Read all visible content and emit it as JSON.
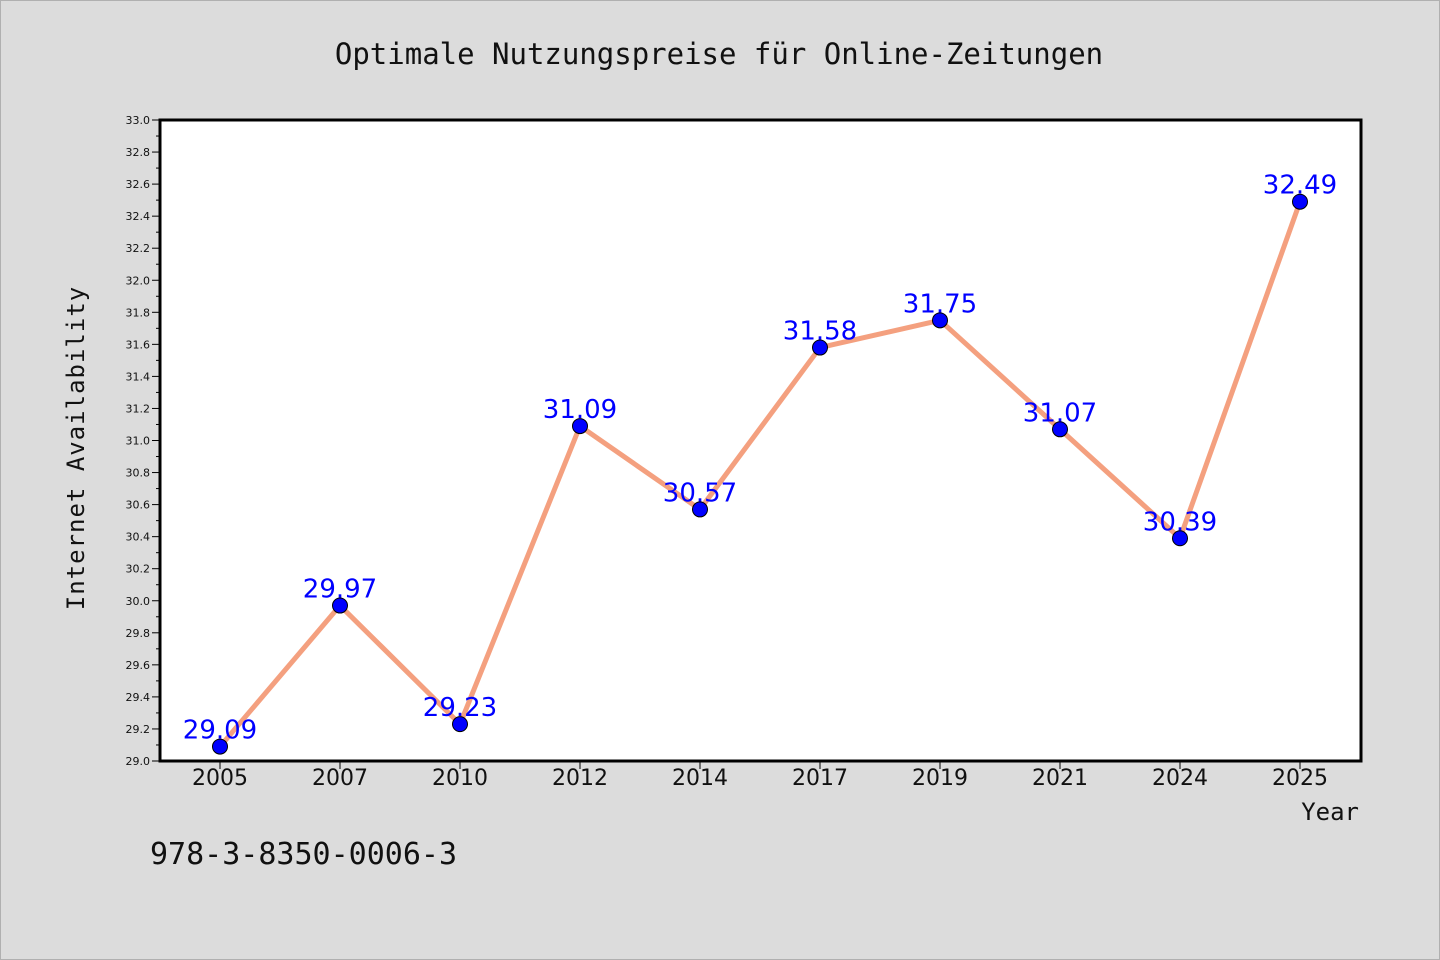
{
  "chart_data": {
    "type": "line",
    "title": "Optimale Nutzungspreise für Online-Zeitungen",
    "xlabel": "Year",
    "ylabel": "Internet Availability",
    "categories": [
      "2005",
      "2007",
      "2010",
      "2012",
      "2014",
      "2017",
      "2019",
      "2021",
      "2024",
      "2025"
    ],
    "values": [
      29.09,
      29.97,
      29.23,
      31.09,
      30.57,
      31.58,
      31.75,
      31.07,
      30.39,
      32.49
    ],
    "data_labels": [
      "29.09",
      "29.97",
      "29.23",
      "31.09",
      "30.57",
      "31.58",
      "31.75",
      "31.07",
      "30.39",
      "32.49"
    ],
    "ylim": [
      29.0,
      33.0
    ],
    "y_ticks": [
      "29.0",
      "29.2",
      "29.4",
      "29.6",
      "29.8",
      "30.0",
      "30.2",
      "30.4",
      "30.6",
      "30.8",
      "31.0",
      "31.2",
      "31.4",
      "31.6",
      "31.8",
      "32.0",
      "32.2",
      "32.4",
      "32.6",
      "32.8",
      "33.0"
    ],
    "grid": false,
    "colors": {
      "line": "#f4a07f",
      "marker": "#0000ff",
      "label": "#0000ff",
      "plot_bg": "#ffffff",
      "figure_bg": "#dcdcdc"
    }
  },
  "footer_text": "978-3-8350-0006-3"
}
